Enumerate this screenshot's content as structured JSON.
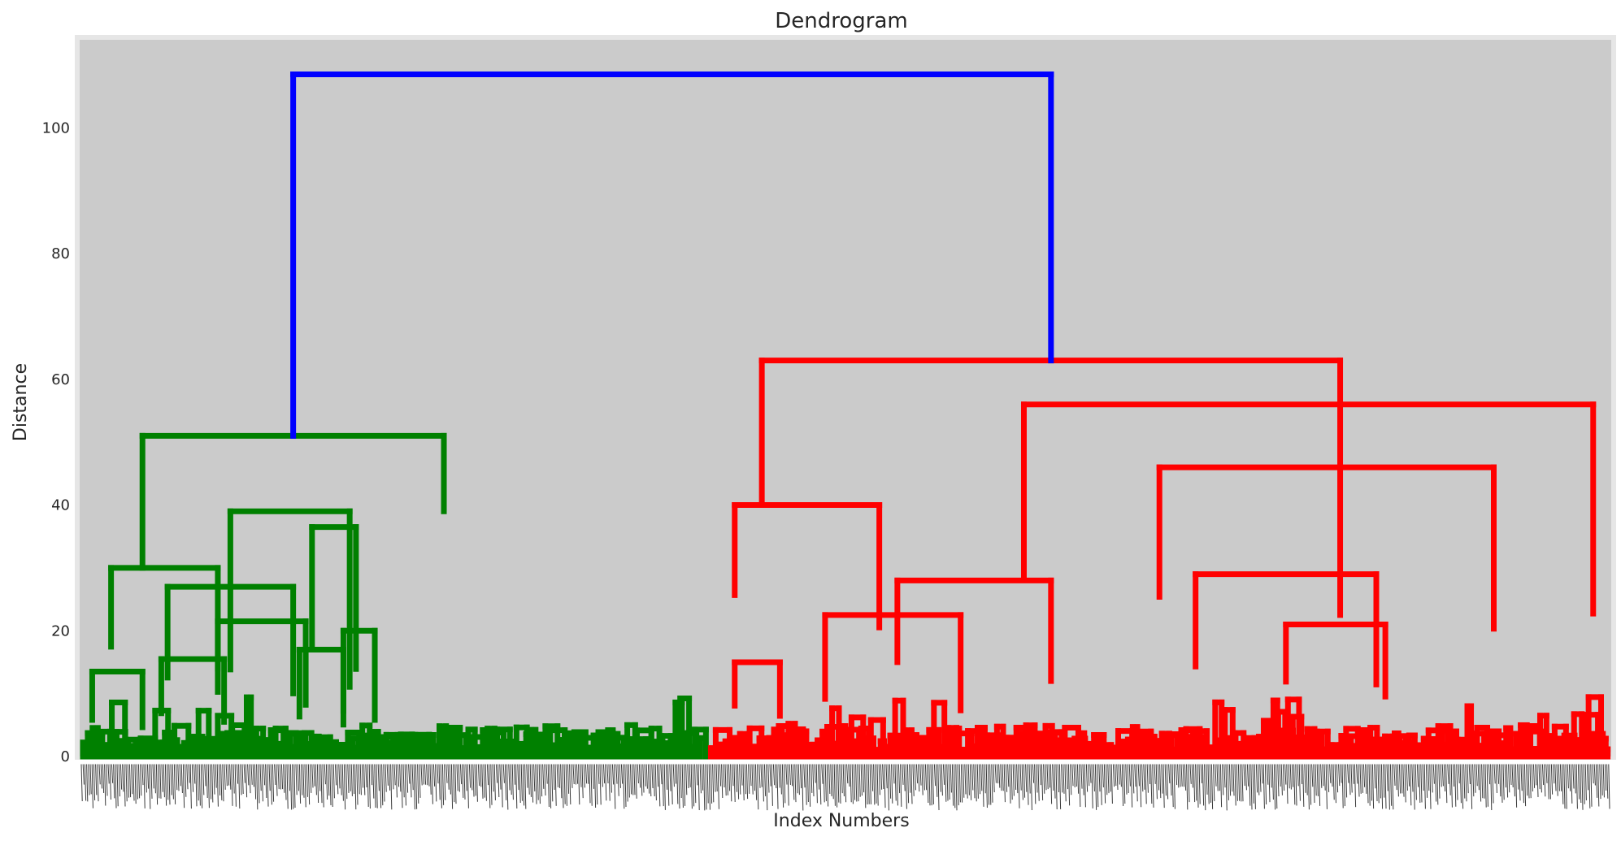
{
  "chart_data": {
    "type": "dendrogram",
    "title": "Dendrogram",
    "xlabel": "Index Numbers",
    "ylabel": "Distance",
    "ylim": [
      0,
      114
    ],
    "yticks": [
      0,
      20,
      40,
      60,
      80,
      100
    ],
    "grid": false,
    "colors": {
      "plot_background": "#cbcbcb",
      "frame": "#e6e6e6",
      "root_link": "#0000ff",
      "cluster_1": "#008000",
      "cluster_2": "#ff0000"
    },
    "root_merge_height": 108.5,
    "clusters": [
      {
        "name": "cluster_1",
        "color": "#008000",
        "merge_height": 51,
        "leaf_extent": [
          0,
          0.41
        ],
        "merges": [
          {
            "x": [
              0.05,
              0.22
            ],
            "height": 30
          },
          {
            "x": [
              0.24,
              0.43
            ],
            "height": 39
          },
          {
            "x": [
              0.02,
              0.1
            ],
            "height": 13.5
          },
          {
            "x": [
              0.13,
              0.23
            ],
            "height": 15.5
          },
          {
            "x": [
              0.14,
              0.34
            ],
            "height": 27
          },
          {
            "x": [
              0.37,
              0.44
            ],
            "height": 36.5
          },
          {
            "x": [
              0.22,
              0.36
            ],
            "height": 21.5
          },
          {
            "x": [
              0.35,
              0.42
            ],
            "height": 17
          },
          {
            "x": [
              0.42,
              0.47
            ],
            "height": 20
          }
        ]
      },
      {
        "name": "cluster_2",
        "color": "#ff0000",
        "merge_height": 63,
        "leaf_extent": [
          0.41,
          1.0
        ],
        "merges": [
          {
            "x": [
              0.03,
              0.19
            ],
            "height": 40
          },
          {
            "x": [
              0.13,
              0.28
            ],
            "height": 22.5
          },
          {
            "x": [
              0.03,
              0.08
            ],
            "height": 15
          },
          {
            "x": [
              0.35,
              0.98
            ],
            "height": 56
          },
          {
            "x": [
              0.5,
              0.87
            ],
            "height": 46
          },
          {
            "x": [
              0.21,
              0.38
            ],
            "height": 28
          },
          {
            "x": [
              0.54,
              0.74
            ],
            "height": 29
          },
          {
            "x": [
              0.64,
              0.75
            ],
            "height": 21
          }
        ]
      }
    ]
  }
}
